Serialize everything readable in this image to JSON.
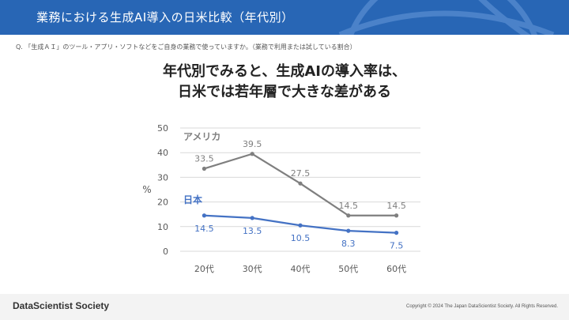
{
  "header": {
    "title": "業務における生成AI導入の日米比較（年代別）"
  },
  "question": "Q. 「生成ＡＩ」のツール・アプリ・ソフトなどをご自身の業務で使っていますか。（業務で利用または試している割合）",
  "headline": {
    "line1": "年代別でみると、生成AIの導入率は、",
    "line2": "日米では若年層で大きな差がある"
  },
  "chart_data": {
    "type": "line",
    "categories": [
      "20代",
      "30代",
      "40代",
      "50代",
      "60代"
    ],
    "ylabel": "%",
    "ylim": [
      0,
      50
    ],
    "yticks": [
      0,
      10,
      20,
      30,
      40,
      50
    ],
    "grid": true,
    "series": [
      {
        "name": "アメリカ",
        "values": [
          33.5,
          39.5,
          27.5,
          14.5,
          14.5
        ],
        "labels": [
          "33.5",
          "39.5",
          "27.5",
          "14.5",
          "14.5"
        ],
        "color": "#7f7f7f"
      },
      {
        "name": "日本",
        "values": [
          14.5,
          13.5,
          10.5,
          8.3,
          7.5
        ],
        "labels": [
          "14.5",
          "13.5",
          "10.5",
          "8.3",
          "7.5"
        ],
        "color": "#4472c4"
      }
    ]
  },
  "footer": {
    "brand": "DataScientist Society",
    "copyright": "Copyright © 2024 The Japan DataScientist Society. All Rights Reserved."
  },
  "colors": {
    "header_bg": "#2866b5",
    "accent": "#4472c4"
  }
}
